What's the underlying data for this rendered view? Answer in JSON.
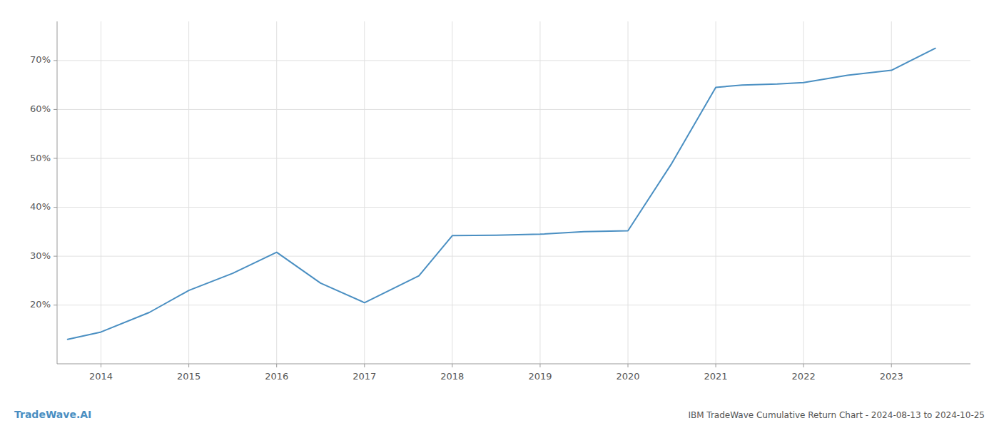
{
  "chart_data": {
    "type": "line",
    "title": "IBM TradeWave Cumulative Return Chart - 2024-08-13 to 2024-10-25",
    "annotations": [
      "TradeWave.AI"
    ],
    "x": [
      2013.62,
      2014.0,
      2014.55,
      2015.0,
      2015.5,
      2016.0,
      2016.5,
      2017.0,
      2017.62,
      2018.0,
      2018.5,
      2019.0,
      2019.5,
      2020.0,
      2020.5,
      2021.0,
      2021.3,
      2021.7,
      2022.0,
      2022.5,
      2023.0,
      2023.5
    ],
    "values": [
      13.0,
      14.5,
      18.5,
      23.0,
      26.5,
      30.8,
      24.5,
      20.5,
      26.0,
      34.2,
      34.3,
      34.5,
      35.0,
      35.2,
      49.0,
      64.5,
      65.0,
      65.2,
      65.5,
      67.0,
      68.0,
      72.5
    ],
    "color": "#4a8fc2",
    "xlim": [
      2013.5,
      2023.9
    ],
    "xticks": [
      2014,
      2015,
      2016,
      2017,
      2018,
      2019,
      2020,
      2021,
      2022,
      2023
    ],
    "ylim": [
      8,
      78
    ],
    "yticks": [
      {
        "value": 20,
        "label": "20%"
      },
      {
        "value": 30,
        "label": "30%"
      },
      {
        "value": 40,
        "label": "40%"
      },
      {
        "value": 50,
        "label": "50%"
      },
      {
        "value": 60,
        "label": "60%"
      },
      {
        "value": 70,
        "label": "70%"
      }
    ],
    "grid": true
  }
}
